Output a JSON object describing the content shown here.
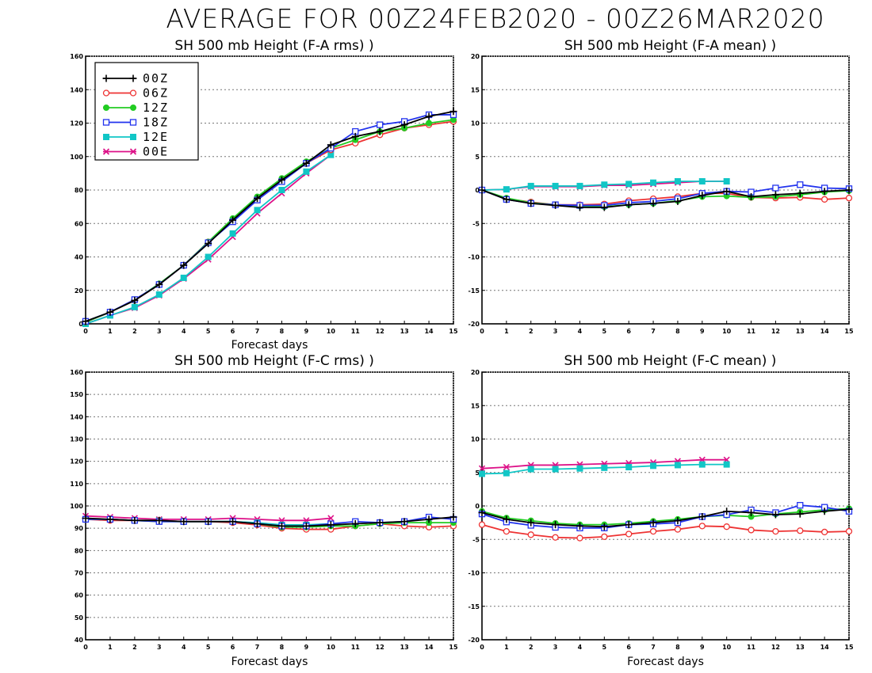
{
  "main_title": "AVERAGE FOR 00Z24FEB2020 - 00Z26MAR2020",
  "colors": {
    "00Z": "#000000",
    "06Z": "#ee3333",
    "12Z": "#22cc22",
    "18Z": "#2233ee",
    "12E": "#11c6c6",
    "00E": "#dd1188"
  },
  "chart_data": [
    {
      "type": "line",
      "title": "SH 500 mb Height (F-A rms) )",
      "xlabel": "Forecast days",
      "ylabel": "",
      "xlim": [
        0,
        15
      ],
      "ylim": [
        0,
        160
      ],
      "xticks": [
        0,
        1,
        2,
        3,
        4,
        5,
        6,
        7,
        8,
        9,
        10,
        11,
        12,
        13,
        14,
        15
      ],
      "yticks": [
        0,
        20,
        40,
        60,
        80,
        100,
        120,
        140,
        160
      ],
      "grid": true,
      "legend_position": "top-left",
      "legend": [
        "00Z",
        "06Z",
        "12Z",
        "18Z",
        "12E",
        "00E"
      ],
      "series": [
        {
          "name": "00Z",
          "x": [
            0,
            1,
            2,
            3,
            4,
            5,
            6,
            7,
            8,
            9,
            10,
            11,
            12,
            13,
            14,
            15
          ],
          "values": [
            1.5,
            7,
            14,
            23.5,
            35,
            48,
            62,
            75,
            86,
            96,
            107,
            112,
            115,
            119,
            124,
            127
          ]
        },
        {
          "name": "06Z",
          "x": [
            0,
            1,
            2,
            3,
            4,
            5,
            6,
            7,
            8,
            9,
            10,
            11,
            12,
            13,
            14,
            15
          ],
          "values": [
            1,
            7,
            14,
            23.5,
            35,
            49,
            62,
            75,
            86,
            96,
            104,
            108,
            113,
            117,
            119,
            121
          ]
        },
        {
          "name": "12Z",
          "x": [
            0,
            1,
            2,
            3,
            4,
            5,
            6,
            7,
            8,
            9,
            10,
            11,
            12,
            13,
            14,
            15
          ],
          "values": [
            1,
            7,
            14,
            24,
            35,
            49,
            63,
            76,
            87,
            97,
            105,
            110,
            115,
            117,
            120,
            122
          ]
        },
        {
          "name": "18Z",
          "x": [
            0,
            1,
            2,
            3,
            4,
            5,
            6,
            7,
            8,
            9,
            10,
            11,
            12,
            13,
            14,
            15
          ],
          "values": [
            1.5,
            7,
            14.5,
            23.5,
            35,
            48.5,
            61,
            74,
            85,
            96,
            105,
            115,
            119,
            121,
            125,
            125
          ]
        },
        {
          "name": "12E",
          "x": [
            0,
            1,
            2,
            3,
            4,
            5,
            6,
            7,
            8,
            9,
            10
          ],
          "values": [
            0,
            5,
            10,
            17.5,
            27.5,
            40,
            54,
            68,
            80,
            91,
            101
          ]
        },
        {
          "name": "00E",
          "x": [
            0,
            1,
            2,
            3,
            4,
            5,
            6,
            7,
            8,
            9,
            10
          ],
          "values": [
            0,
            5,
            9.5,
            17,
            27,
            38.5,
            52,
            66,
            78,
            90,
            101
          ]
        }
      ]
    },
    {
      "type": "line",
      "title": "SH 500 mb Height (F-A mean) )",
      "xlabel": "",
      "ylabel": "",
      "xlim": [
        0,
        15
      ],
      "ylim": [
        -20,
        20
      ],
      "xticks": [
        0,
        1,
        2,
        3,
        4,
        5,
        6,
        7,
        8,
        9,
        10,
        11,
        12,
        13,
        14,
        15
      ],
      "yticks": [
        -20,
        -15,
        -10,
        -5,
        0,
        5,
        10,
        15,
        20
      ],
      "grid": true,
      "series": [
        {
          "name": "00Z",
          "x": [
            0,
            1,
            2,
            3,
            4,
            5,
            6,
            7,
            8,
            9,
            10,
            11,
            12,
            13,
            14,
            15
          ],
          "values": [
            0,
            -1.4,
            -2,
            -2.3,
            -2.6,
            -2.6,
            -2.2,
            -2,
            -1.7,
            -0.8,
            -0.2,
            -1,
            -0.7,
            -0.5,
            -0.2,
            0
          ]
        },
        {
          "name": "06Z",
          "x": [
            0,
            1,
            2,
            3,
            4,
            5,
            6,
            7,
            8,
            9,
            10,
            11,
            12,
            13,
            14,
            15
          ],
          "values": [
            0,
            -1.3,
            -1.8,
            -2.2,
            -2.2,
            -2.1,
            -1.6,
            -1.3,
            -1,
            -0.5,
            -0.5,
            -1.1,
            -1.2,
            -1.1,
            -1.4,
            -1.2
          ]
        },
        {
          "name": "12Z",
          "x": [
            0,
            1,
            2,
            3,
            4,
            5,
            6,
            7,
            8,
            9,
            10,
            11,
            12,
            13,
            14,
            15
          ],
          "values": [
            0,
            -1.2,
            -1.9,
            -2.2,
            -2.4,
            -2.5,
            -2.2,
            -2,
            -1.6,
            -1,
            -0.9,
            -1.1,
            -1,
            -0.7,
            -0.3,
            -0.1
          ]
        },
        {
          "name": "18Z",
          "x": [
            0,
            1,
            2,
            3,
            4,
            5,
            6,
            7,
            8,
            9,
            10,
            11,
            12,
            13,
            14,
            15
          ],
          "values": [
            0,
            -1.4,
            -2,
            -2.2,
            -2.3,
            -2.3,
            -1.9,
            -1.7,
            -1.3,
            -0.5,
            -0.2,
            -0.3,
            0.3,
            0.8,
            0.3,
            0.2
          ]
        },
        {
          "name": "12E",
          "x": [
            0,
            1,
            2,
            3,
            4,
            5,
            6,
            7,
            8,
            9,
            10
          ],
          "values": [
            0,
            0.1,
            0.6,
            0.6,
            0.6,
            0.8,
            0.9,
            1.1,
            1.3,
            1.3,
            1.3
          ]
        },
        {
          "name": "00E",
          "x": [
            0,
            1,
            2,
            3,
            4,
            5,
            6,
            7,
            8,
            9,
            10
          ],
          "values": [
            0,
            0.1,
            0.5,
            0.5,
            0.5,
            0.7,
            0.7,
            0.9,
            1.1,
            1.3,
            1.3
          ]
        }
      ]
    },
    {
      "type": "line",
      "title": "SH 500 mb Height (F-C rms) )",
      "xlabel": "Forecast days",
      "ylabel": "",
      "xlim": [
        0,
        15
      ],
      "ylim": [
        40,
        160
      ],
      "xticks": [
        0,
        1,
        2,
        3,
        4,
        5,
        6,
        7,
        8,
        9,
        10,
        11,
        12,
        13,
        14,
        15
      ],
      "yticks": [
        40,
        50,
        60,
        70,
        80,
        90,
        100,
        110,
        120,
        130,
        140,
        150,
        160
      ],
      "grid": true,
      "series": [
        {
          "name": "00Z",
          "x": [
            0,
            1,
            2,
            3,
            4,
            5,
            6,
            7,
            8,
            9,
            10,
            11,
            12,
            13,
            14,
            15
          ],
          "values": [
            94.5,
            94,
            93.5,
            93.5,
            93,
            93,
            93,
            92,
            91,
            91,
            91.5,
            92,
            92.5,
            93,
            94,
            95
          ]
        },
        {
          "name": "06Z",
          "x": [
            0,
            1,
            2,
            3,
            4,
            5,
            6,
            7,
            8,
            9,
            10,
            11,
            12,
            13,
            14,
            15
          ],
          "values": [
            94,
            93.5,
            93.5,
            93.5,
            93,
            93,
            92.5,
            91.5,
            90,
            89.5,
            89.5,
            91,
            92,
            91,
            90.5,
            91
          ]
        },
        {
          "name": "12Z",
          "x": [
            0,
            1,
            2,
            3,
            4,
            5,
            6,
            7,
            8,
            9,
            10,
            11,
            12,
            13,
            14,
            15
          ],
          "values": [
            94,
            94,
            93.5,
            93,
            93,
            93,
            93,
            92,
            90.5,
            90.5,
            91,
            91,
            92,
            92.5,
            92.5,
            92.5
          ]
        },
        {
          "name": "18Z",
          "x": [
            0,
            1,
            2,
            3,
            4,
            5,
            6,
            7,
            8,
            9,
            10,
            11,
            12,
            13,
            14,
            15
          ],
          "values": [
            94,
            94,
            93.5,
            93,
            93,
            93,
            93,
            92,
            91,
            91,
            92,
            93,
            92.5,
            93,
            95,
            94
          ]
        },
        {
          "name": "12E",
          "x": [
            0,
            1,
            2,
            3,
            4,
            5,
            6,
            7,
            8,
            9,
            10
          ],
          "values": [
            94,
            94,
            93.5,
            93.5,
            93,
            93,
            93,
            92.5,
            91.5,
            91.5,
            92
          ]
        },
        {
          "name": "00E",
          "x": [
            0,
            1,
            2,
            3,
            4,
            5,
            6,
            7,
            8,
            9,
            10
          ],
          "values": [
            95.5,
            95,
            94.5,
            94,
            94,
            94,
            94.5,
            94,
            93.5,
            93.5,
            94.5
          ]
        }
      ]
    },
    {
      "type": "line",
      "title": "SH 500 mb Height (F-C mean) )",
      "xlabel": "Forecast days",
      "ylabel": "",
      "xlim": [
        0,
        15
      ],
      "ylim": [
        -20,
        20
      ],
      "xticks": [
        0,
        1,
        2,
        3,
        4,
        5,
        6,
        7,
        8,
        9,
        10,
        11,
        12,
        13,
        14,
        15
      ],
      "yticks": [
        -20,
        -15,
        -10,
        -5,
        0,
        5,
        10,
        15,
        20
      ],
      "grid": true,
      "series": [
        {
          "name": "00Z",
          "x": [
            0,
            1,
            2,
            3,
            4,
            5,
            6,
            7,
            8,
            9,
            10,
            11,
            12,
            13,
            14,
            15
          ],
          "values": [
            -1,
            -2,
            -2.5,
            -2.8,
            -3,
            -3.1,
            -2.8,
            -2.5,
            -2.2,
            -1.6,
            -0.8,
            -1,
            -1.3,
            -1.2,
            -0.8,
            -0.5
          ]
        },
        {
          "name": "06Z",
          "x": [
            0,
            1,
            2,
            3,
            4,
            5,
            6,
            7,
            8,
            9,
            10,
            11,
            12,
            13,
            14,
            15
          ],
          "values": [
            -2.8,
            -3.8,
            -4.3,
            -4.7,
            -4.8,
            -4.6,
            -4.2,
            -3.8,
            -3.5,
            -3,
            -3.1,
            -3.6,
            -3.8,
            -3.7,
            -3.9,
            -3.8
          ]
        },
        {
          "name": "12Z",
          "x": [
            0,
            1,
            2,
            3,
            4,
            5,
            6,
            7,
            8,
            9,
            10,
            11,
            12,
            13,
            14,
            15
          ],
          "values": [
            -0.8,
            -1.8,
            -2.2,
            -2.6,
            -2.8,
            -2.8,
            -2.6,
            -2.3,
            -2,
            -1.6,
            -1.4,
            -1.6,
            -1.2,
            -0.9,
            -0.6,
            -0.4
          ]
        },
        {
          "name": "18Z",
          "x": [
            0,
            1,
            2,
            3,
            4,
            5,
            6,
            7,
            8,
            9,
            10,
            11,
            12,
            13,
            14,
            15
          ],
          "values": [
            -1.2,
            -2.4,
            -2.9,
            -3.2,
            -3.3,
            -3.3,
            -2.8,
            -2.7,
            -2.5,
            -1.6,
            -1.3,
            -0.6,
            -1,
            0.1,
            -0.2,
            -0.8
          ]
        },
        {
          "name": "12E",
          "x": [
            0,
            1,
            2,
            3,
            4,
            5,
            6,
            7,
            8,
            9,
            10
          ],
          "values": [
            4.8,
            4.9,
            5.5,
            5.5,
            5.6,
            5.7,
            5.8,
            6,
            6.1,
            6.2,
            6.2
          ]
        },
        {
          "name": "00E",
          "x": [
            0,
            1,
            2,
            3,
            4,
            5,
            6,
            7,
            8,
            9,
            10
          ],
          "values": [
            5.6,
            5.8,
            6.1,
            6.1,
            6.2,
            6.3,
            6.4,
            6.5,
            6.7,
            6.9,
            6.9
          ]
        }
      ]
    }
  ]
}
